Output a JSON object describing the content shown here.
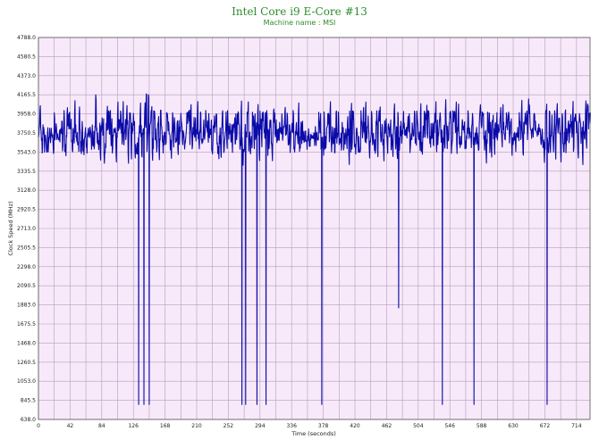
{
  "chart_data": {
    "type": "line",
    "title": "Intel Core i9 E-Core #13",
    "subtitle": "Machine name : MSI",
    "xlabel": "Time (seconds)",
    "ylabel": "Clock Speed (MHz)",
    "xlim": [
      0,
      732
    ],
    "ylim": [
      638.0,
      4788.0
    ],
    "xticks": [
      0,
      42,
      84,
      126,
      168,
      210,
      252,
      294,
      336,
      378,
      420,
      462,
      504,
      546,
      588,
      630,
      672,
      714
    ],
    "yticks": [
      4788.0,
      4580.5,
      4373.0,
      4165.5,
      3958.0,
      3750.5,
      3543.0,
      3335.5,
      3128.0,
      2920.5,
      2713.0,
      2505.5,
      2298.0,
      2090.5,
      1883.0,
      1675.5,
      1468.0,
      1260.5,
      1053.0,
      845.5,
      638.0
    ],
    "ytick_labels": [
      "4788.0",
      "4580.5",
      "4373.0",
      "4165.5",
      "3958.0",
      "3750.5",
      "3543.0",
      "3335.5",
      "3128.0",
      "2920.5",
      "2713.0",
      "2505.5",
      "2298.0",
      "2090.5",
      "1883.0",
      "1675.5",
      "1468.0",
      "1260.5",
      "1053.0",
      "845.5",
      "638.0"
    ],
    "grid": true,
    "plot_background": "#f7e9f9",
    "grid_color": "#b89cc0",
    "line_color": "#0b0ba8",
    "title_color": "#2e8b2e",
    "series": [
      {
        "values_baseline": 3750.5,
        "spikes": [
          {
            "x": 133,
            "y": 800
          },
          {
            "x": 140,
            "y": 800
          },
          {
            "x": 147,
            "y": 800
          },
          {
            "x": 270,
            "y": 800
          },
          {
            "x": 275,
            "y": 800
          },
          {
            "x": 290,
            "y": 800
          },
          {
            "x": 302,
            "y": 800
          },
          {
            "x": 376,
            "y": 800
          },
          {
            "x": 478,
            "y": 1850
          },
          {
            "x": 536,
            "y": 800
          },
          {
            "x": 578,
            "y": 800
          },
          {
            "x": 675,
            "y": 800
          }
        ]
      }
    ]
  }
}
